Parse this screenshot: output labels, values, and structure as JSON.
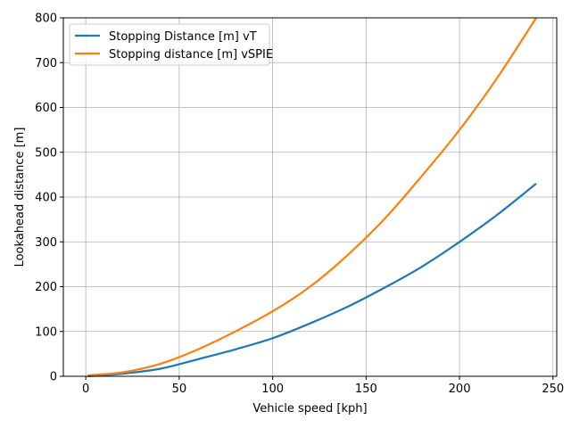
{
  "chart_data": {
    "type": "line",
    "xlabel": "Vehicle speed [kph]",
    "ylabel": "Lookahead distance [m]",
    "xlim": [
      -12,
      252
    ],
    "ylim": [
      0,
      800
    ],
    "xticks": [
      0,
      50,
      100,
      150,
      200,
      250
    ],
    "yticks": [
      0,
      100,
      200,
      300,
      400,
      500,
      600,
      700,
      800
    ],
    "grid": true,
    "legend_position": "top-left",
    "series": [
      {
        "name": "Stopping Distance [m] vT",
        "color": "#1f77b4",
        "x": [
          1,
          20,
          40,
          60,
          80,
          100,
          120,
          140,
          160,
          180,
          200,
          220,
          241
        ],
        "y": [
          0,
          6,
          17,
          38,
          60,
          85,
          118,
          155,
          198,
          245,
          300,
          360,
          430
        ]
      },
      {
        "name": "Stopping distance [m] vSPIE",
        "color": "#ff7f0e",
        "x": [
          1,
          20,
          40,
          60,
          80,
          100,
          120,
          140,
          160,
          180,
          200,
          220,
          241
        ],
        "y": [
          2,
          9,
          28,
          60,
          100,
          145,
          200,
          270,
          352,
          448,
          550,
          665,
          800
        ]
      }
    ]
  }
}
